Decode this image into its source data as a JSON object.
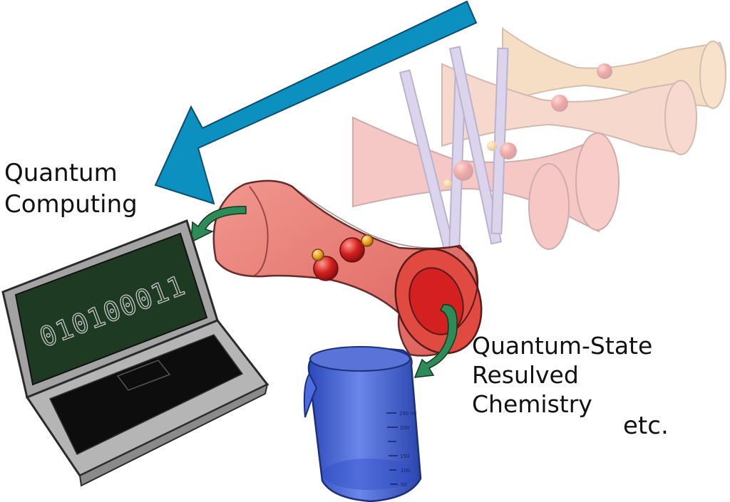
{
  "labels": {
    "quantum_computing": [
      "Quantum",
      "Computing"
    ],
    "quantum_state_chemistry": [
      "Quantum-State",
      "Resulved",
      "Chemistry"
    ],
    "etc": "etc."
  },
  "laptop": {
    "screen_text": "010100011"
  },
  "beaker": {
    "scale_labels": [
      "250 ml",
      "200",
      "150",
      "100",
      "50"
    ]
  },
  "colors": {
    "big_arrow": "#0b90c0",
    "trap_red": "#e8706a",
    "trap_orange": "#e7a56a",
    "laser_purple": "#a48fd0",
    "ion_red": "#d42020",
    "ion_orange": "#f0a020",
    "small_arrow_green": "#2e8b57",
    "laptop_screen": "#1e3a23",
    "laptop_body": "#a3a3a3",
    "beaker_blue": "#3f63d8"
  },
  "icons": [
    "big-blue-arrow-icon",
    "laptop-icon",
    "beaker-icon",
    "ion-trap-icon",
    "green-curved-arrow-icon"
  ]
}
